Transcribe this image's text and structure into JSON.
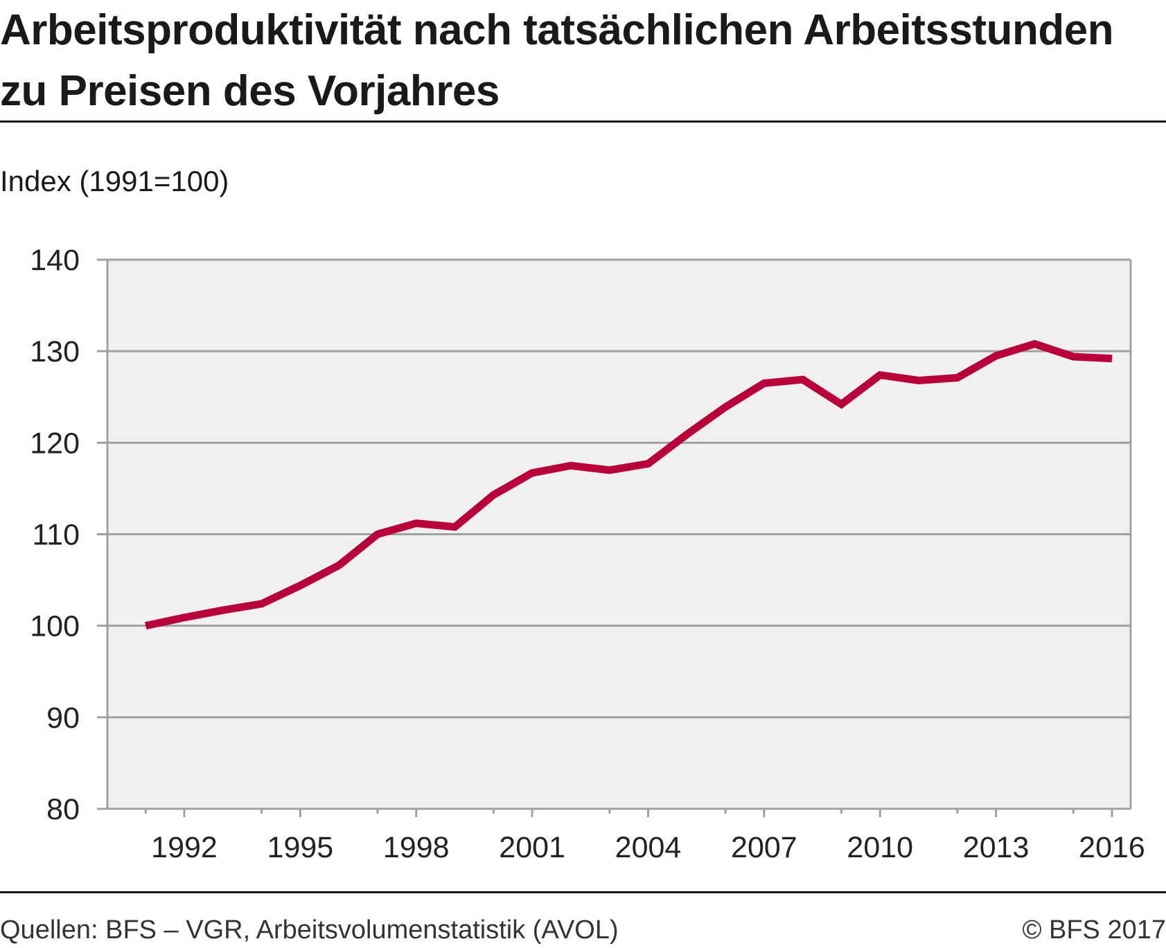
{
  "title": {
    "line1": "Arbeitsproduktivität nach tatsächlichen Arbeitsstunden",
    "line2": "zu Preisen des Vorjahres"
  },
  "footer": {
    "source": "Quellen: BFS – VGR, Arbeitsvolumenstatistik (AVOL)",
    "copyright": "© BFS 2017"
  },
  "chart_data": {
    "type": "line",
    "title": "Arbeitsproduktivität nach tatsächlichen Arbeitsstunden zu Preisen des Vorjahres",
    "ylabel": "Index (1991=100)",
    "xlabel": "",
    "ylim": [
      80,
      140
    ],
    "xlim": [
      1990.5,
      2016.5
    ],
    "yticks": [
      80,
      90,
      100,
      110,
      120,
      130,
      140
    ],
    "xticks": [
      1992,
      1995,
      1998,
      2001,
      2004,
      2007,
      2010,
      2013,
      2016
    ],
    "grid": true,
    "line_color": "#b8003a",
    "x": [
      1991,
      1992,
      1993,
      1994,
      1995,
      1996,
      1997,
      1998,
      1999,
      2000,
      2001,
      2002,
      2003,
      2004,
      2005,
      2006,
      2007,
      2008,
      2009,
      2010,
      2011,
      2012,
      2013,
      2014,
      2015,
      2016
    ],
    "series": [
      {
        "values": [
          100.0,
          100.9,
          101.7,
          102.4,
          104.4,
          106.6,
          110.0,
          111.2,
          110.8,
          114.3,
          116.7,
          117.5,
          117.0,
          117.7,
          120.9,
          123.9,
          126.5,
          126.9,
          124.2,
          127.4,
          126.8,
          127.1,
          129.5,
          130.8,
          129.4,
          129.2
        ]
      }
    ]
  }
}
